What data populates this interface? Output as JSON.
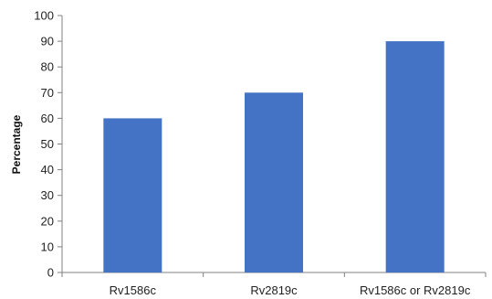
{
  "chart_data": {
    "type": "bar",
    "title": "",
    "xlabel": "",
    "ylabel": "Percentage",
    "categories": [
      "Rv1586c",
      "Rv2819c",
      "Rv1586c or Rv2819c"
    ],
    "values": [
      60,
      70,
      90
    ],
    "ylim": [
      0,
      100
    ],
    "yticks": [
      0,
      10,
      20,
      30,
      40,
      50,
      60,
      70,
      80,
      90,
      100
    ],
    "grid": false,
    "bar_color": "#4472C4",
    "axis_color": "#808080"
  }
}
